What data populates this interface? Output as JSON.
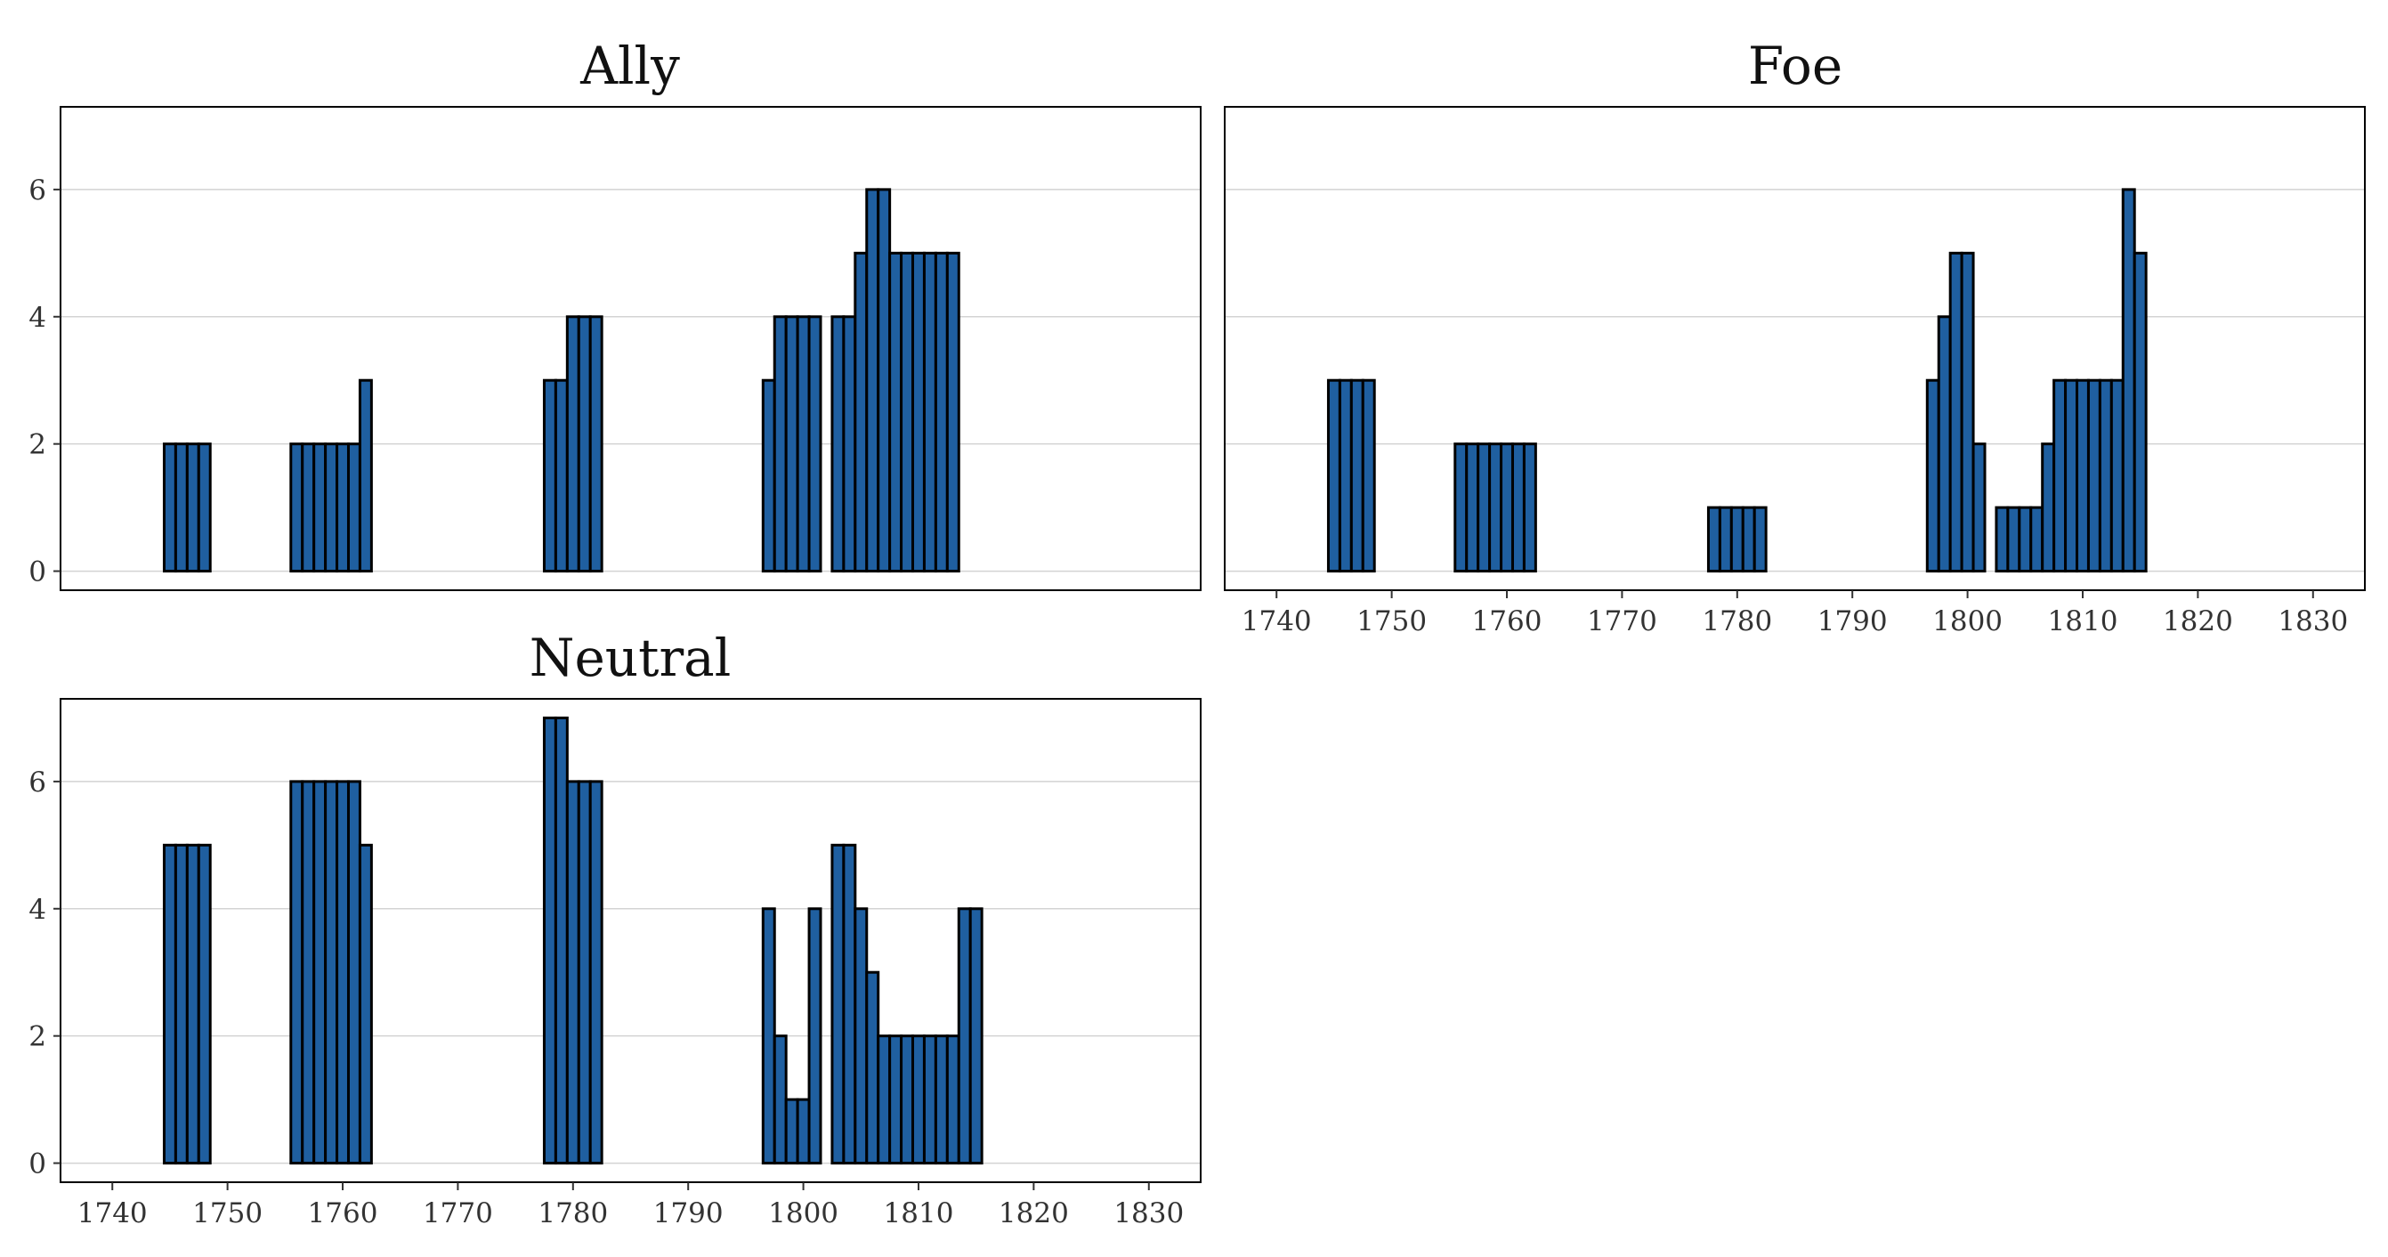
{
  "chart_data": [
    {
      "type": "bar",
      "title": "Ally",
      "xlabel": "",
      "ylabel": "",
      "xlim": [
        1735.5,
        1834.5
      ],
      "ylim": [
        -0.3,
        7.3
      ],
      "xticks": [
        1740,
        1750,
        1760,
        1770,
        1780,
        1790,
        1800,
        1810,
        1820,
        1830
      ],
      "yticks": [
        0,
        2,
        4,
        6
      ],
      "grid": "horizontal",
      "bar_fill": "#1f5fa0",
      "bar_stroke": "#000000",
      "x": [
        1745,
        1746,
        1747,
        1748,
        1756,
        1757,
        1758,
        1759,
        1760,
        1761,
        1762,
        1778,
        1779,
        1780,
        1781,
        1782,
        1797,
        1798,
        1799,
        1800,
        1801,
        1803,
        1804,
        1805,
        1806,
        1807,
        1808,
        1809,
        1810,
        1811,
        1812,
        1813
      ],
      "values": [
        2,
        2,
        2,
        2,
        2,
        2,
        2,
        2,
        2,
        2,
        3,
        3,
        3,
        4,
        4,
        4,
        3,
        4,
        4,
        4,
        4,
        4,
        4,
        5,
        6,
        6,
        5,
        5,
        5,
        5,
        5,
        5
      ]
    },
    {
      "type": "bar",
      "title": "Foe",
      "xlabel": "",
      "ylabel": "",
      "xlim": [
        1735.5,
        1834.5
      ],
      "ylim": [
        -0.3,
        7.3
      ],
      "xticks": [
        1740,
        1750,
        1760,
        1770,
        1780,
        1790,
        1800,
        1810,
        1820,
        1830
      ],
      "yticks": [
        0,
        2,
        4,
        6
      ],
      "grid": "horizontal",
      "bar_fill": "#1f5fa0",
      "bar_stroke": "#000000",
      "x": [
        1745,
        1746,
        1747,
        1748,
        1756,
        1757,
        1758,
        1759,
        1760,
        1761,
        1762,
        1778,
        1779,
        1780,
        1781,
        1782,
        1797,
        1798,
        1799,
        1800,
        1801,
        1803,
        1804,
        1805,
        1806,
        1807,
        1808,
        1809,
        1810,
        1811,
        1812,
        1813,
        1814,
        1815
      ],
      "values": [
        3,
        3,
        3,
        3,
        2,
        2,
        2,
        2,
        2,
        2,
        2,
        1,
        1,
        1,
        1,
        1,
        3,
        4,
        5,
        5,
        2,
        1,
        1,
        1,
        1,
        2,
        3,
        3,
        3,
        3,
        3,
        3,
        6,
        5
      ]
    },
    {
      "type": "bar",
      "title": "Neutral",
      "xlabel": "",
      "ylabel": "",
      "xlim": [
        1735.5,
        1834.5
      ],
      "ylim": [
        -0.3,
        7.3
      ],
      "xticks": [
        1740,
        1750,
        1760,
        1770,
        1780,
        1790,
        1800,
        1810,
        1820,
        1830
      ],
      "yticks": [
        0,
        2,
        4,
        6
      ],
      "grid": "horizontal",
      "bar_fill": "#1f5fa0",
      "bar_stroke": "#000000",
      "x": [
        1745,
        1746,
        1747,
        1748,
        1756,
        1757,
        1758,
        1759,
        1760,
        1761,
        1762,
        1778,
        1779,
        1780,
        1781,
        1782,
        1797,
        1798,
        1799,
        1800,
        1801,
        1803,
        1804,
        1805,
        1806,
        1807,
        1808,
        1809,
        1810,
        1811,
        1812,
        1813,
        1814,
        1815
      ],
      "values": [
        5,
        5,
        5,
        5,
        6,
        6,
        6,
        6,
        6,
        6,
        5,
        7,
        7,
        6,
        6,
        6,
        4,
        2,
        1,
        1,
        4,
        5,
        5,
        4,
        3,
        2,
        2,
        2,
        2,
        2,
        2,
        2,
        4,
        4
      ]
    }
  ]
}
